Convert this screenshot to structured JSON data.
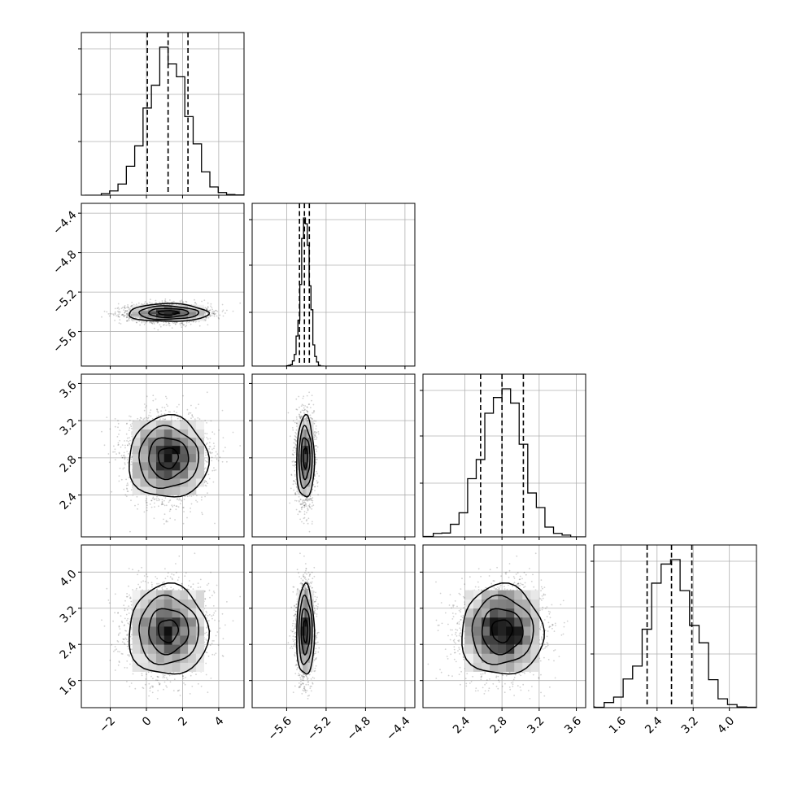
{
  "chart_data": {
    "type": "corner",
    "parameters": [
      {
        "range": [
          -3.6,
          5.4
        ],
        "ticks": [
          -2,
          0,
          2,
          4
        ],
        "tick_labels": [
          "−2",
          "0",
          "2",
          "4"
        ],
        "mean": 1.2,
        "std": 1.1,
        "quantiles": [
          0.05,
          1.2,
          2.3
        ]
      },
      {
        "range": [
          -5.95,
          -4.3
        ],
        "ticks": [
          -5.6,
          -5.2,
          -4.8,
          -4.4
        ],
        "tick_labels": [
          "−5.6",
          "−5.2",
          "−4.8",
          "−4.4"
        ],
        "mean": -5.41,
        "std": 0.045,
        "quantiles": [
          -5.47,
          -5.42,
          -5.37
        ]
      },
      {
        "range": [
          1.95,
          3.7
        ],
        "ticks": [
          2.4,
          2.8,
          3.2,
          3.6
        ],
        "tick_labels": [
          "2.4",
          "2.8",
          "3.2",
          "3.6"
        ],
        "mean": 2.8,
        "std": 0.22,
        "quantiles": [
          2.57,
          2.8,
          3.03
        ]
      },
      {
        "range": [
          1.0,
          4.6
        ],
        "ticks": [
          1.6,
          2.4,
          3.2,
          4.0
        ],
        "tick_labels": [
          "1.6",
          "2.4",
          "3.2",
          "4.0"
        ],
        "mean": 2.7,
        "std": 0.5,
        "quantiles": [
          2.18,
          2.72,
          3.17
        ]
      }
    ],
    "x_tick_rows": [
      3
    ],
    "y_tick_cols": [
      0
    ],
    "quantile_lines": "dashed",
    "contour_levels": 4,
    "grid": true,
    "title": "",
    "xlabel": "",
    "ylabel": ""
  }
}
